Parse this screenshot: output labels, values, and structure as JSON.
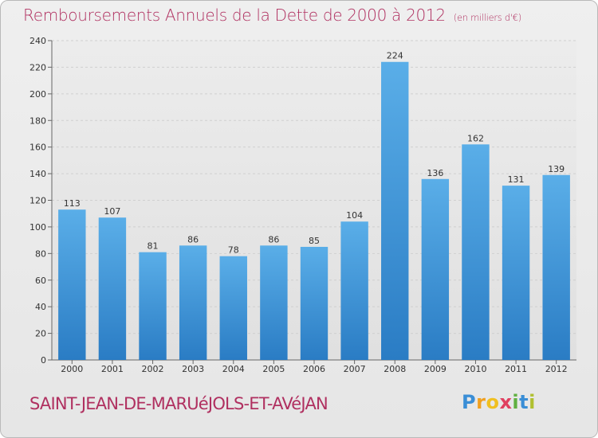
{
  "title": "Remboursements Annuels de la Dette de 2000 à 2012",
  "unit_note": "(en milliers d'€)",
  "city": "SAINT-JEAN-DE-MARUéJOLS-ET-AVéJAN",
  "logo": {
    "p": "P",
    "r": "r",
    "o": "o",
    "x": "x",
    "i1": "i",
    "t": "t",
    "i2": "i"
  },
  "colors": {
    "bar_top": "#5aaee8",
    "bar_bottom": "#2a7cc4",
    "title": "#b03060"
  },
  "chart_data": {
    "type": "bar",
    "title": "Remboursements Annuels de la Dette de 2000 à 2012",
    "xlabel": "",
    "ylabel": "",
    "categories": [
      "2000",
      "2001",
      "2002",
      "2003",
      "2004",
      "2005",
      "2006",
      "2007",
      "2008",
      "2009",
      "2010",
      "2011",
      "2012"
    ],
    "values": [
      113,
      107,
      81,
      86,
      78,
      86,
      85,
      104,
      224,
      136,
      162,
      131,
      139
    ],
    "ylim": [
      0,
      240
    ],
    "yticks": [
      0,
      20,
      40,
      60,
      80,
      100,
      120,
      140,
      160,
      180,
      200,
      220,
      240
    ],
    "grid": true,
    "legend": "none",
    "data_labels": true
  }
}
